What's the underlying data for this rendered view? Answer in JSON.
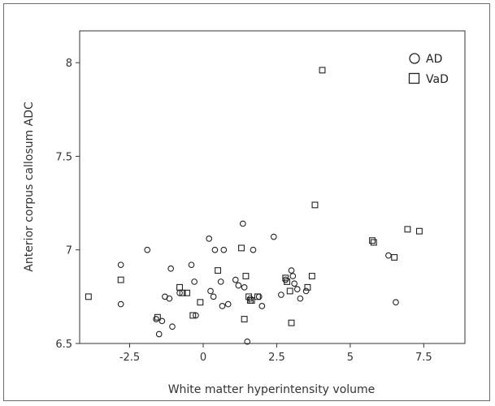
{
  "chart_data": {
    "type": "scatter",
    "title": "",
    "xlabel": "White matter hyperintensity volume",
    "ylabel": "Anterior corpus callosum ADC",
    "xlim": [
      -4.2,
      8.9
    ],
    "ylim": [
      6.5,
      8.17
    ],
    "x_ticks": [
      "-2.5",
      "0",
      "2.5",
      "5",
      "7.5"
    ],
    "y_ticks": [
      "6.5",
      "7",
      "7.5",
      "8"
    ],
    "grid": false,
    "legend_position": "top-right",
    "series": [
      {
        "name": "AD",
        "marker": "circle",
        "points": [
          [
            -2.8,
            6.92
          ],
          [
            -2.8,
            6.71
          ],
          [
            -1.9,
            7.0
          ],
          [
            -1.6,
            6.63
          ],
          [
            -1.5,
            6.55
          ],
          [
            -1.4,
            6.62
          ],
          [
            -1.3,
            6.75
          ],
          [
            -1.15,
            6.74
          ],
          [
            -1.1,
            6.9
          ],
          [
            -1.05,
            6.59
          ],
          [
            -0.8,
            6.77
          ],
          [
            -0.4,
            6.92
          ],
          [
            -0.3,
            6.83
          ],
          [
            -0.25,
            6.65
          ],
          [
            0.2,
            7.06
          ],
          [
            0.25,
            6.78
          ],
          [
            0.35,
            6.75
          ],
          [
            0.4,
            7.0
          ],
          [
            0.6,
            6.83
          ],
          [
            0.65,
            6.7
          ],
          [
            0.7,
            7.0
          ],
          [
            0.85,
            6.71
          ],
          [
            1.1,
            6.84
          ],
          [
            1.2,
            6.81
          ],
          [
            1.35,
            7.14
          ],
          [
            1.4,
            6.8
          ],
          [
            1.5,
            6.51
          ],
          [
            1.6,
            6.74
          ],
          [
            1.7,
            7.0
          ],
          [
            1.9,
            6.75
          ],
          [
            2.0,
            6.7
          ],
          [
            2.4,
            7.07
          ],
          [
            2.65,
            6.76
          ],
          [
            2.8,
            6.84
          ],
          [
            3.0,
            6.89
          ],
          [
            3.05,
            6.86
          ],
          [
            3.1,
            6.82
          ],
          [
            3.2,
            6.79
          ],
          [
            3.3,
            6.74
          ],
          [
            3.5,
            6.78
          ],
          [
            6.3,
            6.97
          ],
          [
            6.55,
            6.72
          ]
        ]
      },
      {
        "name": "VaD",
        "marker": "square",
        "points": [
          [
            -3.9,
            6.75
          ],
          [
            -2.8,
            6.84
          ],
          [
            -1.55,
            6.64
          ],
          [
            -0.8,
            6.8
          ],
          [
            -0.7,
            6.77
          ],
          [
            -0.55,
            6.77
          ],
          [
            -0.35,
            6.65
          ],
          [
            -0.1,
            6.72
          ],
          [
            0.5,
            6.89
          ],
          [
            1.3,
            7.01
          ],
          [
            1.4,
            6.63
          ],
          [
            1.45,
            6.86
          ],
          [
            1.55,
            6.75
          ],
          [
            1.6,
            6.73
          ],
          [
            1.65,
            6.73
          ],
          [
            1.85,
            6.75
          ],
          [
            2.8,
            6.85
          ],
          [
            2.85,
            6.83
          ],
          [
            2.95,
            6.78
          ],
          [
            3.0,
            6.61
          ],
          [
            3.55,
            6.8
          ],
          [
            3.7,
            6.86
          ],
          [
            3.8,
            7.24
          ],
          [
            4.05,
            7.96
          ],
          [
            5.75,
            7.05
          ],
          [
            5.8,
            7.04
          ],
          [
            6.5,
            6.96
          ],
          [
            6.95,
            7.11
          ],
          [
            7.35,
            7.1
          ]
        ]
      }
    ]
  }
}
